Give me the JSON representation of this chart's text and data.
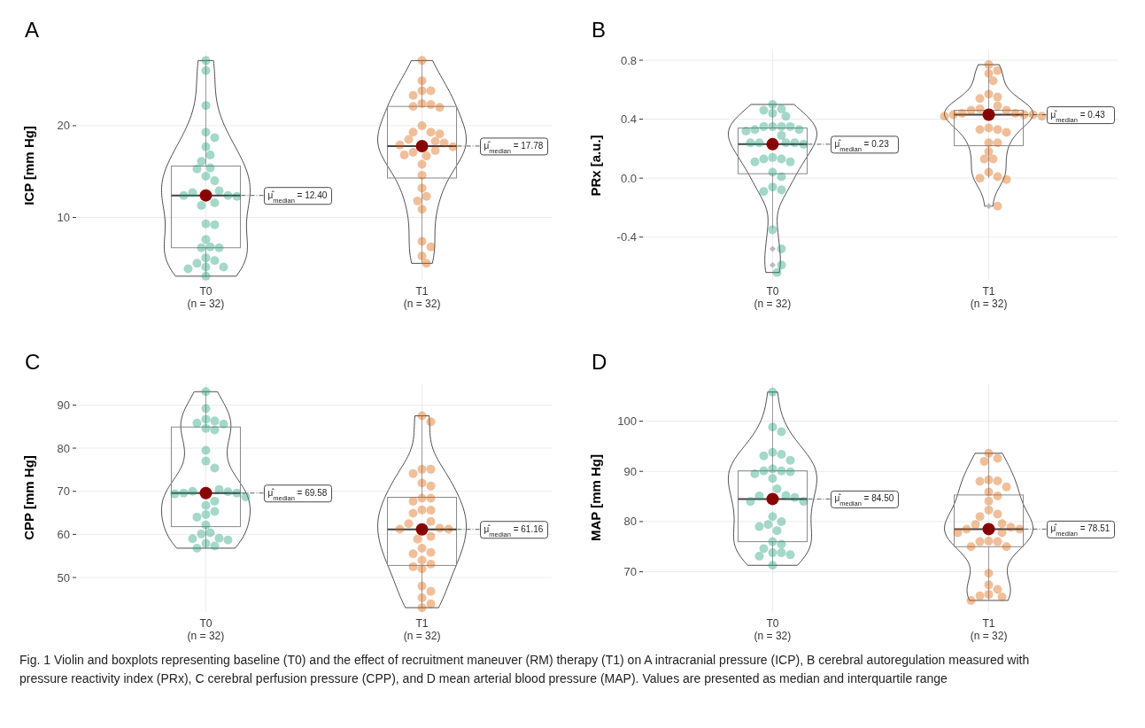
{
  "chart_data": [
    {
      "type": "box",
      "title": "A",
      "ylabel": "ICP [mm Hg]",
      "categories": [
        "T0\n(n = 32)",
        "T1\n(n = 32)"
      ],
      "ylim": [
        3.2,
        28.1
      ],
      "yticks": [
        10,
        20
      ],
      "grid": true,
      "marker": "circle",
      "boxes": [
        {
          "low": 3.6,
          "q1": 6.7,
          "median": 12.4,
          "q3": 15.6,
          "high": 27.1
        },
        {
          "low": 5.0,
          "q1": 14.3,
          "median": 17.78,
          "q3": 22.1,
          "high": 27.1
        }
      ],
      "series": [
        {
          "type": "scatter",
          "color": "#1b9e77",
          "x": [
            "T0\n(n = 32)",
            "T0\n(n = 32)",
            "T0\n(n = 32)",
            "T0\n(n = 32)",
            "T0\n(n = 32)",
            "T0\n(n = 32)",
            "T0\n(n = 32)",
            "T0\n(n = 32)",
            "T0\n(n = 32)",
            "T0\n(n = 32)",
            "T0\n(n = 32)",
            "T0\n(n = 32)",
            "T0\n(n = 32)",
            "T0\n(n = 32)",
            "T0\n(n = 32)",
            "T0\n(n = 32)",
            "T0\n(n = 32)",
            "T0\n(n = 32)",
            "T0\n(n = 32)",
            "T0\n(n = 32)",
            "T0\n(n = 32)",
            "T0\n(n = 32)",
            "T0\n(n = 32)",
            "T0\n(n = 32)",
            "T0\n(n = 32)",
            "T0\n(n = 32)",
            "T0\n(n = 32)",
            "T0\n(n = 32)",
            "T0\n(n = 32)",
            "T0\n(n = 32)",
            "T0\n(n = 32)",
            "T0\n(n = 32)"
          ],
          "values": [
            27.1,
            26.0,
            22.2,
            19.3,
            18.7,
            17.7,
            16.8,
            16.1,
            15.4,
            15.3,
            14.5,
            14.0,
            12.9,
            12.7,
            12.4,
            12.4,
            12.3,
            11.6,
            11.3,
            9.3,
            9.2,
            7.6,
            6.8,
            6.7,
            6.7,
            5.6,
            5.3,
            5.0,
            4.6,
            4.6,
            4.4,
            3.6
          ]
        },
        {
          "type": "scatter",
          "color": "#d95f02",
          "x": [
            "T1\n(n = 32)",
            "T1\n(n = 32)",
            "T1\n(n = 32)",
            "T1\n(n = 32)",
            "T1\n(n = 32)",
            "T1\n(n = 32)",
            "T1\n(n = 32)",
            "T1\n(n = 32)",
            "T1\n(n = 32)",
            "T1\n(n = 32)",
            "T1\n(n = 32)",
            "T1\n(n = 32)",
            "T1\n(n = 32)",
            "T1\n(n = 32)",
            "T1\n(n = 32)",
            "T1\n(n = 32)",
            "T1\n(n = 32)",
            "T1\n(n = 32)",
            "T1\n(n = 32)",
            "T1\n(n = 32)",
            "T1\n(n = 32)",
            "T1\n(n = 32)",
            "T1\n(n = 32)",
            "T1\n(n = 32)",
            "T1\n(n = 32)",
            "T1\n(n = 32)",
            "T1\n(n = 32)",
            "T1\n(n = 32)",
            "T1\n(n = 32)",
            "T1\n(n = 32)",
            "T1\n(n = 32)",
            "T1\n(n = 32)"
          ],
          "values": [
            27.1,
            24.9,
            23.8,
            23.8,
            23.3,
            22.4,
            22.3,
            22.1,
            22.0,
            20.0,
            19.3,
            19.3,
            19.1,
            18.5,
            18.3,
            18.1,
            17.9,
            17.7,
            17.3,
            17.1,
            16.8,
            16.7,
            15.8,
            14.6,
            13.2,
            12.3,
            11.8,
            10.9,
            7.4,
            6.8,
            5.8,
            5.0
          ]
        },
        {
          "type": "scatter",
          "color": "#8b0000",
          "x": [
            "T0\n(n = 32)",
            "T1\n(n = 32)"
          ],
          "values": [
            12.4,
            17.78
          ]
        }
      ],
      "annotations": [
        {
          "text": "μ̂$_{median}$ = 12.40",
          "x": "T0\n(n = 32)",
          "y": 12.4
        },
        {
          "text": "μ̂$_{median}$ = 17.78",
          "x": "T1\n(n = 32)",
          "y": 17.78
        }
      ]
    },
    {
      "type": "box",
      "title": "B",
      "ylabel": "PRx [a.u.]",
      "categories": [
        "T0\n(n = 32)",
        "T1\n(n = 32)"
      ],
      "ylim": [
        -0.69,
        0.86
      ],
      "yticks": [
        {
          "value": -0.4,
          "label": "-0.4"
        },
        {
          "value": 0,
          "label": "0.0"
        },
        {
          "value": 0.4,
          "label": "0.4"
        },
        {
          "value": 0.8,
          "label": "0.8"
        }
      ],
      "grid": true,
      "marker": "circle",
      "boxes": [
        {
          "low": -0.34,
          "q1": 0.03,
          "median": 0.23,
          "q3": 0.34,
          "high": 0.5,
          "outliers": [
            -0.48,
            -0.59
          ]
        },
        {
          "low": 0.0,
          "q1": 0.22,
          "median": 0.43,
          "q3": 0.46,
          "high": 0.77,
          "outliers": [
            -0.19
          ]
        }
      ],
      "series": [
        {
          "type": "scatter",
          "color": "#1b9e77",
          "x": [
            "T0\n(n = 32)",
            "T0\n(n = 32)",
            "T0\n(n = 32)",
            "T0\n(n = 32)",
            "T0\n(n = 32)",
            "T0\n(n = 32)",
            "T0\n(n = 32)",
            "T0\n(n = 32)",
            "T0\n(n = 32)",
            "T0\n(n = 32)",
            "T0\n(n = 32)",
            "T0\n(n = 32)",
            "T0\n(n = 32)",
            "T0\n(n = 32)",
            "T0\n(n = 32)",
            "T0\n(n = 32)",
            "T0\n(n = 32)",
            "T0\n(n = 32)",
            "T0\n(n = 32)",
            "T0\n(n = 32)",
            "T0\n(n = 32)",
            "T0\n(n = 32)",
            "T0\n(n = 32)",
            "T0\n(n = 32)",
            "T0\n(n = 32)",
            "T0\n(n = 32)",
            "T0\n(n = 32)",
            "T0\n(n = 32)",
            "T0\n(n = 32)",
            "T0\n(n = 32)",
            "T0\n(n = 32)",
            "T0\n(n = 32)"
          ],
          "values": [
            0.5,
            0.47,
            0.46,
            0.44,
            0.42,
            0.35,
            0.35,
            0.35,
            0.35,
            0.33,
            0.33,
            0.32,
            0.29,
            0.24,
            0.24,
            0.24,
            0.24,
            0.23,
            0.14,
            0.13,
            0.13,
            0.11,
            0.11,
            0.04,
            0.01,
            -0.06,
            -0.08,
            -0.09,
            -0.35,
            -0.48,
            -0.59,
            -0.64
          ]
        },
        {
          "type": "scatter",
          "color": "#d95f02",
          "x": [
            "T1\n(n = 32)",
            "T1\n(n = 32)",
            "T1\n(n = 32)",
            "T1\n(n = 32)",
            "T1\n(n = 32)",
            "T1\n(n = 32)",
            "T1\n(n = 32)",
            "T1\n(n = 32)",
            "T1\n(n = 32)",
            "T1\n(n = 32)",
            "T1\n(n = 32)",
            "T1\n(n = 32)",
            "T1\n(n = 32)",
            "T1\n(n = 32)",
            "T1\n(n = 32)",
            "T1\n(n = 32)",
            "T1\n(n = 32)",
            "T1\n(n = 32)",
            "T1\n(n = 32)",
            "T1\n(n = 32)",
            "T1\n(n = 32)",
            "T1\n(n = 32)",
            "T1\n(n = 32)",
            "T1\n(n = 32)",
            "T1\n(n = 32)",
            "T1\n(n = 32)",
            "T1\n(n = 32)",
            "T1\n(n = 32)",
            "T1\n(n = 32)",
            "T1\n(n = 32)",
            "T1\n(n = 32)",
            "T1\n(n = 32)"
          ],
          "values": [
            0.77,
            0.73,
            0.71,
            0.66,
            0.57,
            0.55,
            0.54,
            0.49,
            0.47,
            0.46,
            0.46,
            0.44,
            0.44,
            0.43,
            0.43,
            0.43,
            0.42,
            0.42,
            0.34,
            0.33,
            0.33,
            0.31,
            0.24,
            0.24,
            0.18,
            0.13,
            0.13,
            0.04,
            0.01,
            0.0,
            -0.01,
            -0.19
          ]
        },
        {
          "type": "scatter",
          "color": "#8b0000",
          "x": [
            "T0\n(n = 32)",
            "T1\n(n = 32)"
          ],
          "values": [
            0.23,
            0.43
          ]
        }
      ],
      "annotations": [
        {
          "text": "μ̂$_{median}$ = 0.23",
          "x": "T0\n(n = 32)",
          "y": 0.23
        },
        {
          "text": "μ̂$_{median}$ = 0.43",
          "x": "T1\n(n = 32)",
          "y": 0.43
        }
      ]
    },
    {
      "type": "box",
      "title": "C",
      "ylabel": "CPP [mm Hg]",
      "categories": [
        "T0\n(n = 32)",
        "T1\n(n = 32)"
      ],
      "ylim": [
        42,
        95
      ],
      "yticks": [
        50,
        60,
        70,
        80,
        90
      ],
      "grid": true,
      "marker": "circle",
      "boxes": [
        {
          "low": 56.8,
          "q1": 61.8,
          "median": 69.58,
          "q3": 84.9,
          "high": 93.1
        },
        {
          "low": 43.0,
          "q1": 52.8,
          "median": 61.16,
          "q3": 68.6,
          "high": 87.5
        }
      ],
      "series": [
        {
          "type": "scatter",
          "color": "#1b9e77",
          "x": [
            "T0\n(n = 32)",
            "T0\n(n = 32)",
            "T0\n(n = 32)",
            "T0\n(n = 32)",
            "T0\n(n = 32)",
            "T0\n(n = 32)",
            "T0\n(n = 32)",
            "T0\n(n = 32)",
            "T0\n(n = 32)",
            "T0\n(n = 32)",
            "T0\n(n = 32)",
            "T0\n(n = 32)",
            "T0\n(n = 32)",
            "T0\n(n = 32)",
            "T0\n(n = 32)",
            "T0\n(n = 32)",
            "T0\n(n = 32)",
            "T0\n(n = 32)",
            "T0\n(n = 32)",
            "T0\n(n = 32)",
            "T0\n(n = 32)",
            "T0\n(n = 32)",
            "T0\n(n = 32)",
            "T0\n(n = 32)",
            "T0\n(n = 32)",
            "T0\n(n = 32)",
            "T0\n(n = 32)",
            "T0\n(n = 32)",
            "T0\n(n = 32)",
            "T0\n(n = 32)",
            "T0\n(n = 32)",
            "T0\n(n = 32)"
          ],
          "values": [
            93.1,
            89.2,
            86.7,
            86.3,
            85.8,
            85.6,
            84.6,
            84.2,
            79.5,
            77.0,
            75.4,
            70.4,
            70.0,
            69.9,
            69.6,
            69.6,
            69.4,
            68.7,
            67.7,
            66.7,
            65.3,
            64.6,
            64.0,
            62.2,
            60.4,
            60.1,
            59.1,
            59.0,
            58.7,
            57.9,
            57.3,
            56.8
          ]
        },
        {
          "type": "scatter",
          "color": "#d95f02",
          "x": [
            "T1\n(n = 32)",
            "T1\n(n = 32)",
            "T1\n(n = 32)",
            "T1\n(n = 32)",
            "T1\n(n = 32)",
            "T1\n(n = 32)",
            "T1\n(n = 32)",
            "T1\n(n = 32)",
            "T1\n(n = 32)",
            "T1\n(n = 32)",
            "T1\n(n = 32)",
            "T1\n(n = 32)",
            "T1\n(n = 32)",
            "T1\n(n = 32)",
            "T1\n(n = 32)",
            "T1\n(n = 32)",
            "T1\n(n = 32)",
            "T1\n(n = 32)",
            "T1\n(n = 32)",
            "T1\n(n = 32)",
            "T1\n(n = 32)",
            "T1\n(n = 32)",
            "T1\n(n = 32)",
            "T1\n(n = 32)",
            "T1\n(n = 32)",
            "T1\n(n = 32)",
            "T1\n(n = 32)",
            "T1\n(n = 32)",
            "T1\n(n = 32)",
            "T1\n(n = 32)",
            "T1\n(n = 32)",
            "T1\n(n = 32)"
          ],
          "values": [
            87.5,
            86.1,
            75.1,
            75.1,
            74.1,
            71.9,
            71.2,
            68.4,
            68.4,
            67.7,
            65.7,
            65.6,
            64.9,
            63.0,
            62.5,
            61.4,
            61.2,
            61.2,
            59.5,
            58.9,
            56.8,
            55.8,
            55.5,
            54.0,
            53.1,
            52.5,
            52.0,
            48.0,
            46.8,
            45.3,
            43.9,
            43.0
          ]
        },
        {
          "type": "scatter",
          "color": "#8b0000",
          "x": [
            "T0\n(n = 32)",
            "T1\n(n = 32)"
          ],
          "values": [
            69.58,
            61.16
          ]
        }
      ],
      "annotations": [
        {
          "text": "μ̂$_{median}$ = 69.58",
          "x": "T0\n(n = 32)",
          "y": 69.58
        },
        {
          "text": "μ̂$_{median}$ = 61.16",
          "x": "T1\n(n = 32)",
          "y": 61.16
        }
      ]
    },
    {
      "type": "box",
      "title": "D",
      "ylabel": "MAP [mm Hg]",
      "categories": [
        "T0\n(n = 32)",
        "T1\n(n = 32)"
      ],
      "ylim": [
        62,
        107.5
      ],
      "yticks": [
        70,
        80,
        90,
        100
      ],
      "grid": true,
      "marker": "circle",
      "boxes": [
        {
          "low": 71.3,
          "q1": 76.0,
          "median": 84.5,
          "q3": 90.1,
          "high": 105.8
        },
        {
          "low": 64.3,
          "q1": 75.0,
          "median": 78.51,
          "q3": 85.3,
          "high": 93.6
        }
      ],
      "series": [
        {
          "type": "scatter",
          "color": "#1b9e77",
          "x": [
            "T0\n(n = 32)",
            "T0\n(n = 32)",
            "T0\n(n = 32)",
            "T0\n(n = 32)",
            "T0\n(n = 32)",
            "T0\n(n = 32)",
            "T0\n(n = 32)",
            "T0\n(n = 32)",
            "T0\n(n = 32)",
            "T0\n(n = 32)",
            "T0\n(n = 32)",
            "T0\n(n = 32)",
            "T0\n(n = 32)",
            "T0\n(n = 32)",
            "T0\n(n = 32)",
            "T0\n(n = 32)",
            "T0\n(n = 32)",
            "T0\n(n = 32)",
            "T0\n(n = 32)",
            "T0\n(n = 32)",
            "T0\n(n = 32)",
            "T0\n(n = 32)",
            "T0\n(n = 32)",
            "T0\n(n = 32)",
            "T0\n(n = 32)",
            "T0\n(n = 32)",
            "T0\n(n = 32)",
            "T0\n(n = 32)",
            "T0\n(n = 32)",
            "T0\n(n = 32)",
            "T0\n(n = 32)",
            "T0\n(n = 32)"
          ],
          "values": [
            105.8,
            98.8,
            97.9,
            93.8,
            93.4,
            93.1,
            92.2,
            90.5,
            90.1,
            90.1,
            89.9,
            89.5,
            88.6,
            86.5,
            85.2,
            85.1,
            84.8,
            84.0,
            84.0,
            81.0,
            80.0,
            79.4,
            79.0,
            78.2,
            76.0,
            75.5,
            74.6,
            73.8,
            73.8,
            73.4,
            73.1,
            71.3
          ]
        },
        {
          "type": "scatter",
          "color": "#d95f02",
          "x": [
            "T1\n(n = 32)",
            "T1\n(n = 32)",
            "T1\n(n = 32)",
            "T1\n(n = 32)",
            "T1\n(n = 32)",
            "T1\n(n = 32)",
            "T1\n(n = 32)",
            "T1\n(n = 32)",
            "T1\n(n = 32)",
            "T1\n(n = 32)",
            "T1\n(n = 32)",
            "T1\n(n = 32)",
            "T1\n(n = 32)",
            "T1\n(n = 32)",
            "T1\n(n = 32)",
            "T1\n(n = 32)",
            "T1\n(n = 32)",
            "T1\n(n = 32)",
            "T1\n(n = 32)",
            "T1\n(n = 32)",
            "T1\n(n = 32)",
            "T1\n(n = 32)",
            "T1\n(n = 32)",
            "T1\n(n = 32)",
            "T1\n(n = 32)",
            "T1\n(n = 32)",
            "T1\n(n = 32)",
            "T1\n(n = 32)",
            "T1\n(n = 32)",
            "T1\n(n = 32)",
            "T1\n(n = 32)",
            "T1\n(n = 32)"
          ],
          "values": [
            93.6,
            92.6,
            92.0,
            88.3,
            88.1,
            88.0,
            86.9,
            85.9,
            85.1,
            84.1,
            82.3,
            81.5,
            81.0,
            79.6,
            79.4,
            78.9,
            78.5,
            78.5,
            77.8,
            77.8,
            76.1,
            76.0,
            76.0,
            75.0,
            75.0,
            69.7,
            67.4,
            66.5,
            65.5,
            65.2,
            65.0,
            64.3
          ]
        },
        {
          "type": "scatter",
          "color": "#8b0000",
          "x": [
            "T0\n(n = 32)",
            "T1\n(n = 32)"
          ],
          "values": [
            84.5,
            78.51
          ]
        }
      ],
      "annotations": [
        {
          "text": "μ̂$_{median}$ = 84.50",
          "x": "T0\n(n = 32)",
          "y": 84.5
        },
        {
          "text": "μ̂$_{median}$ = 78.51",
          "x": "T1\n(n = 32)",
          "y": 78.51
        },
        "Fig. 1 Violin and boxplots representing baseline (T0) and the effect of recruitment maneuver (RM) therapy (T1) on A intracranial pressure (ICP), B cerebral autoregulation measured with pressure reactivity index (PRx), C cerebral perfusion pressure (CPP), and D mean arterial blood pressure (MAP). Values are presented as median and interquartile range"
      ]
    }
  ]
}
